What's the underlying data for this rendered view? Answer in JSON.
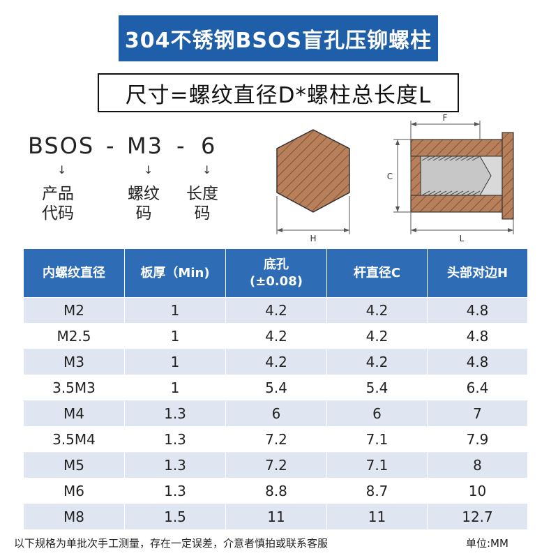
{
  "title": "304不锈钢BSOS盲孔压铆螺柱",
  "subtitle": "尺寸=螺纹直径D*螺柱总长度L",
  "code_breakdown": {
    "parts": [
      "BSOS",
      "M3",
      "6"
    ],
    "separator": "-",
    "arrow": "↓",
    "labels": [
      {
        "line1": "产品",
        "line2": "代码"
      },
      {
        "line1": "螺纹",
        "line2": "码"
      },
      {
        "line1": "长度",
        "line2": "码"
      }
    ]
  },
  "diagram": {
    "hex_label": "H",
    "side_labels": {
      "f": "F",
      "c": "C",
      "l": "L"
    }
  },
  "table": {
    "headers": [
      {
        "line1": "内螺纹直径",
        "line2": ""
      },
      {
        "line1": "板厚（Min)",
        "line2": ""
      },
      {
        "line1": "底孔",
        "line2": "(±0.08)"
      },
      {
        "line1": "杆直径C",
        "line2": ""
      },
      {
        "line1": "头部对边H",
        "line2": ""
      }
    ],
    "rows": [
      [
        "M2",
        "1",
        "4.2",
        "4.2",
        "4.8"
      ],
      [
        "M2.5",
        "1",
        "4.2",
        "4.2",
        "4.8"
      ],
      [
        "M3",
        "1",
        "4.2",
        "4.2",
        "4.8"
      ],
      [
        "3.5M3",
        "1",
        "5.4",
        "5.4",
        "6.4"
      ],
      [
        "M4",
        "1.3",
        "6",
        "6",
        "7"
      ],
      [
        "3.5M4",
        "1.3",
        "7.2",
        "7.1",
        "7.9"
      ],
      [
        "M5",
        "1.3",
        "7.2",
        "7.1",
        "8"
      ],
      [
        "M6",
        "1.3",
        "8.8",
        "8.7",
        "10"
      ],
      [
        "M8",
        "1.5",
        "11",
        "11",
        "12.7"
      ]
    ]
  },
  "footer": {
    "note": "以下规格为单批次手工测量，存在一定误差，介意者慎拍或联系客服",
    "unit": "单位:MM"
  },
  "colors": {
    "title_bg": "#1f5ea8",
    "header_bg": "#2e6db5",
    "row_alt": "#dfe6f2",
    "diagram_fill": "#b8805a"
  }
}
